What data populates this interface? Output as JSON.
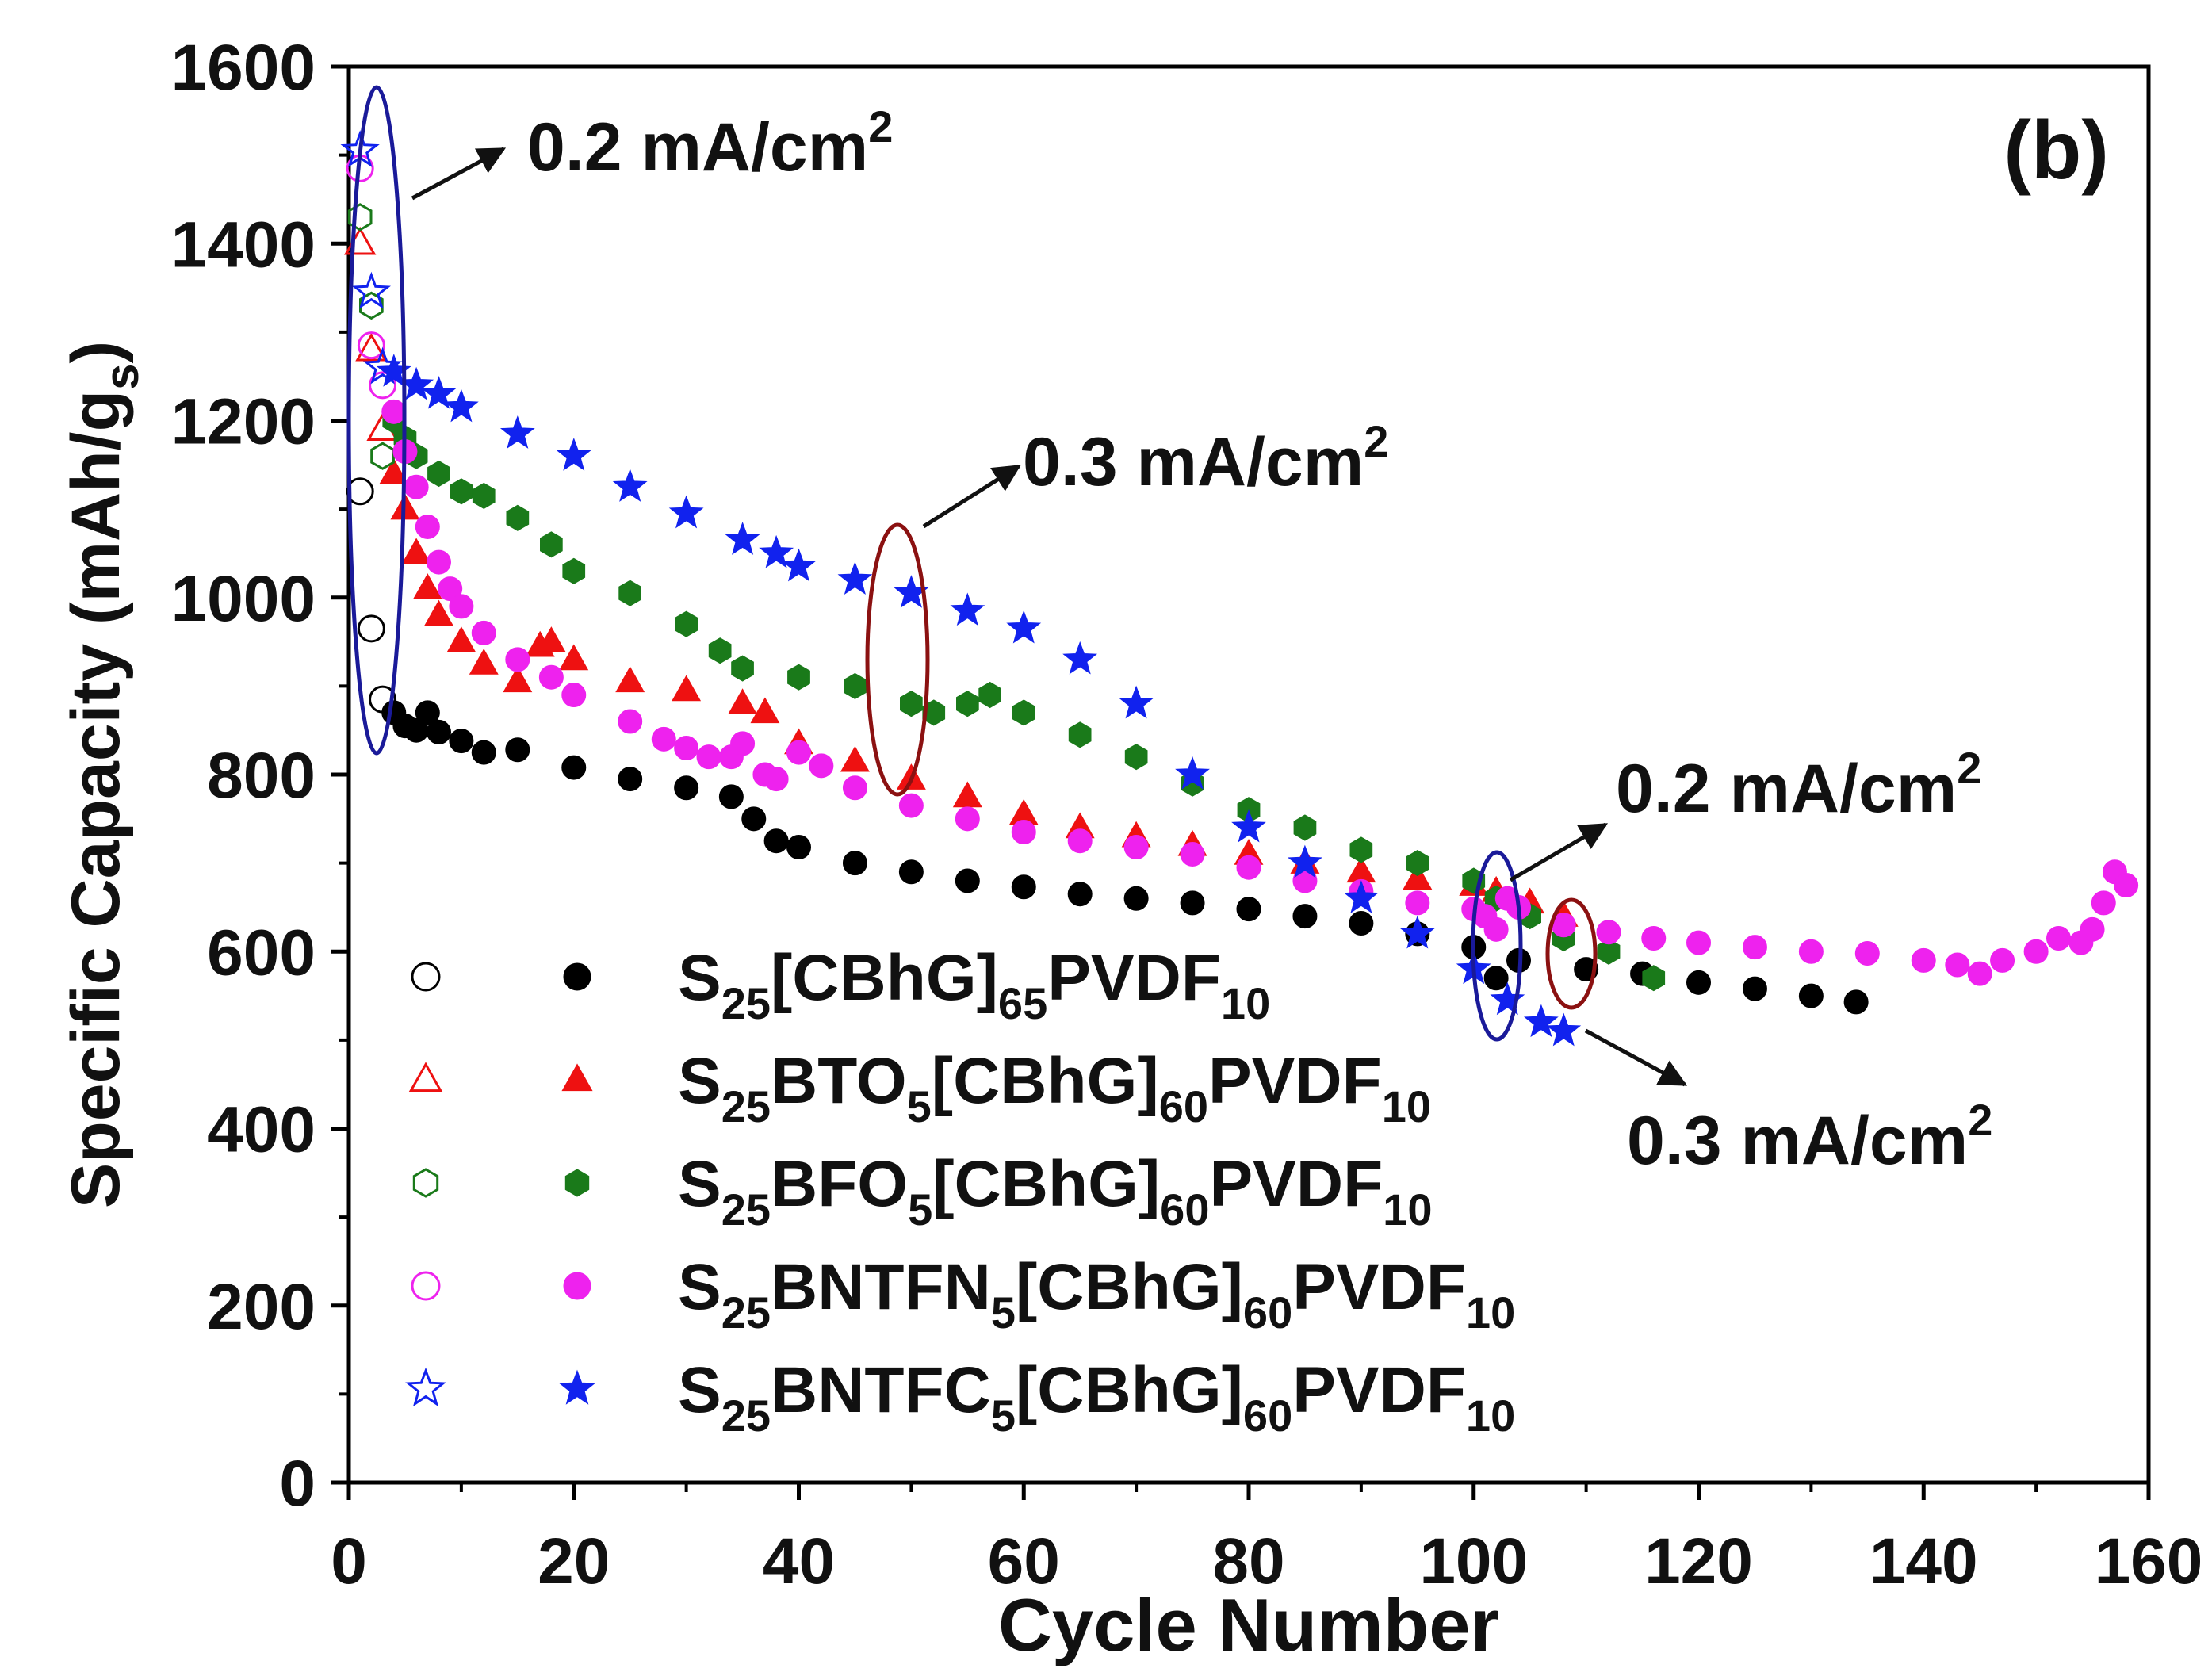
{
  "panel_label": "(b)",
  "chart_data": {
    "type": "scatter",
    "title": "",
    "xlabel": "Cycle Number",
    "ylabel_main": "Specific Capacity (mAh/g",
    "ylabel_sub": "s",
    "ylabel_close": ")",
    "xlim": [
      0,
      160
    ],
    "ylim": [
      0,
      1600
    ],
    "xticks": [
      0,
      20,
      40,
      60,
      80,
      100,
      120,
      140,
      160
    ],
    "yticks": [
      0,
      200,
      400,
      600,
      800,
      1000,
      1200,
      1400,
      1600
    ],
    "legend_position": "bottom-left",
    "series": [
      {
        "name": "S25[CBhG]65PVDF10",
        "legend_parts": [
          [
            "S",
            ""
          ],
          [
            "25",
            "sub"
          ],
          [
            "[CBhG]",
            ""
          ],
          [
            "65",
            "sub"
          ],
          [
            "PVDF",
            ""
          ],
          [
            "10",
            "sub"
          ]
        ],
        "color": "#000000",
        "marker": "circle",
        "open": [
          [
            1,
            1120
          ],
          [
            2,
            965
          ],
          [
            3,
            885
          ]
        ],
        "filled": [
          [
            4,
            870
          ],
          [
            5,
            855
          ],
          [
            6,
            850
          ],
          [
            7,
            870
          ],
          [
            8,
            848
          ],
          [
            10,
            838
          ],
          [
            12,
            825
          ],
          [
            15,
            828
          ],
          [
            20,
            808
          ],
          [
            25,
            795
          ],
          [
            30,
            785
          ],
          [
            34,
            775
          ],
          [
            36,
            750
          ],
          [
            38,
            725
          ],
          [
            40,
            718
          ],
          [
            45,
            700
          ],
          [
            50,
            690
          ],
          [
            55,
            680
          ],
          [
            60,
            673
          ],
          [
            65,
            665
          ],
          [
            70,
            660
          ],
          [
            75,
            655
          ],
          [
            80,
            648
          ],
          [
            85,
            640
          ],
          [
            90,
            632
          ],
          [
            95,
            620
          ],
          [
            100,
            605
          ],
          [
            102,
            570
          ],
          [
            104,
            590
          ],
          [
            110,
            580
          ],
          [
            115,
            575
          ],
          [
            120,
            565
          ],
          [
            125,
            558
          ],
          [
            130,
            550
          ],
          [
            134,
            543
          ]
        ]
      },
      {
        "name": "S25BTO5[CBhG]60PVDF10",
        "legend_parts": [
          [
            "S",
            ""
          ],
          [
            "25",
            "sub"
          ],
          [
            "BTO",
            ""
          ],
          [
            "5",
            "sub"
          ],
          [
            "[CBhG]",
            ""
          ],
          [
            "60",
            "sub"
          ],
          [
            "PVDF",
            ""
          ],
          [
            "10",
            "sub"
          ]
        ],
        "color": "#ee1111",
        "marker": "triangle",
        "open": [
          [
            1,
            1400
          ],
          [
            2,
            1280
          ],
          [
            3,
            1190
          ]
        ],
        "filled": [
          [
            4,
            1140
          ],
          [
            5,
            1100
          ],
          [
            6,
            1050
          ],
          [
            7,
            1010
          ],
          [
            8,
            980
          ],
          [
            10,
            950
          ],
          [
            12,
            925
          ],
          [
            15,
            905
          ],
          [
            17,
            945
          ],
          [
            18,
            950
          ],
          [
            20,
            930
          ],
          [
            25,
            905
          ],
          [
            30,
            895
          ],
          [
            35,
            880
          ],
          [
            37,
            870
          ],
          [
            40,
            835
          ],
          [
            45,
            815
          ],
          [
            50,
            795
          ],
          [
            55,
            775
          ],
          [
            60,
            755
          ],
          [
            65,
            740
          ],
          [
            70,
            730
          ],
          [
            75,
            720
          ],
          [
            80,
            710
          ],
          [
            85,
            700
          ],
          [
            90,
            690
          ],
          [
            95,
            682
          ],
          [
            100,
            675
          ],
          [
            102,
            668
          ],
          [
            105,
            655
          ],
          [
            108,
            640
          ]
        ]
      },
      {
        "name": "S25BFO5[CBhG]60PVDF10",
        "legend_parts": [
          [
            "S",
            ""
          ],
          [
            "25",
            "sub"
          ],
          [
            "BFO",
            ""
          ],
          [
            "5",
            "sub"
          ],
          [
            "[CBhG]",
            ""
          ],
          [
            "60",
            "sub"
          ],
          [
            "PVDF",
            ""
          ],
          [
            "10",
            "sub"
          ]
        ],
        "color": "#1a7a1a",
        "marker": "hexagon",
        "open": [
          [
            1,
            1430
          ],
          [
            2,
            1330
          ],
          [
            3,
            1160
          ]
        ],
        "filled": [
          [
            4,
            1200
          ],
          [
            5,
            1180
          ],
          [
            6,
            1160
          ],
          [
            8,
            1140
          ],
          [
            10,
            1120
          ],
          [
            12,
            1115
          ],
          [
            15,
            1090
          ],
          [
            18,
            1060
          ],
          [
            20,
            1030
          ],
          [
            25,
            1005
          ],
          [
            30,
            970
          ],
          [
            33,
            940
          ],
          [
            35,
            920
          ],
          [
            40,
            910
          ],
          [
            45,
            900
          ],
          [
            50,
            880
          ],
          [
            52,
            870
          ],
          [
            55,
            880
          ],
          [
            57,
            890
          ],
          [
            60,
            870
          ],
          [
            65,
            845
          ],
          [
            70,
            820
          ],
          [
            75,
            790
          ],
          [
            80,
            760
          ],
          [
            85,
            740
          ],
          [
            90,
            715
          ],
          [
            95,
            700
          ],
          [
            100,
            680
          ],
          [
            102,
            660
          ],
          [
            105,
            640
          ],
          [
            108,
            615
          ],
          [
            112,
            600
          ],
          [
            116,
            570
          ]
        ]
      },
      {
        "name": "S25BNTFN5[CBhG]60PVDF10",
        "legend_parts": [
          [
            "S",
            ""
          ],
          [
            "25",
            "sub"
          ],
          [
            "BNTFN",
            ""
          ],
          [
            "5",
            "sub"
          ],
          [
            "[CBhG]",
            ""
          ],
          [
            "60",
            "sub"
          ],
          [
            "PVDF",
            ""
          ],
          [
            "10",
            "sub"
          ]
        ],
        "color": "#ee22ee",
        "marker": "circle",
        "open": [
          [
            1,
            1485
          ],
          [
            2,
            1285
          ],
          [
            3,
            1240
          ]
        ],
        "filled": [
          [
            4,
            1210
          ],
          [
            5,
            1165
          ],
          [
            6,
            1125
          ],
          [
            7,
            1080
          ],
          [
            8,
            1040
          ],
          [
            9,
            1010
          ],
          [
            10,
            990
          ],
          [
            12,
            960
          ],
          [
            15,
            930
          ],
          [
            18,
            910
          ],
          [
            20,
            890
          ],
          [
            25,
            860
          ],
          [
            28,
            840
          ],
          [
            30,
            830
          ],
          [
            32,
            820
          ],
          [
            34,
            820
          ],
          [
            35,
            835
          ],
          [
            37,
            800
          ],
          [
            38,
            795
          ],
          [
            40,
            825
          ],
          [
            42,
            810
          ],
          [
            45,
            785
          ],
          [
            50,
            765
          ],
          [
            55,
            750
          ],
          [
            60,
            735
          ],
          [
            65,
            725
          ],
          [
            70,
            718
          ],
          [
            75,
            710
          ],
          [
            80,
            695
          ],
          [
            85,
            680
          ],
          [
            90,
            668
          ],
          [
            95,
            655
          ],
          [
            100,
            648
          ],
          [
            101,
            640
          ],
          [
            102,
            625
          ],
          [
            103,
            660
          ],
          [
            104,
            650
          ],
          [
            108,
            630
          ],
          [
            112,
            622
          ],
          [
            116,
            615
          ],
          [
            120,
            610
          ],
          [
            125,
            605
          ],
          [
            130,
            600
          ],
          [
            135,
            598
          ],
          [
            140,
            590
          ],
          [
            143,
            585
          ],
          [
            145,
            575
          ],
          [
            147,
            590
          ],
          [
            150,
            600
          ],
          [
            152,
            615
          ],
          [
            154,
            610
          ],
          [
            155,
            625
          ],
          [
            156,
            655
          ],
          [
            157,
            690
          ],
          [
            158,
            675
          ]
        ]
      },
      {
        "name": "S25BNTFC5[CBhG]60PVDF10",
        "legend_parts": [
          [
            "S",
            ""
          ],
          [
            "25",
            "sub"
          ],
          [
            "BNTFC",
            ""
          ],
          [
            "5",
            "sub"
          ],
          [
            "[CBhG]",
            ""
          ],
          [
            "60",
            "sub"
          ],
          [
            "PVDF",
            ""
          ],
          [
            "10",
            "sub"
          ]
        ],
        "color": "#1122ee",
        "marker": "star",
        "open": [
          [
            1,
            1505
          ],
          [
            2,
            1345
          ],
          [
            3,
            1260
          ]
        ],
        "filled": [
          [
            4,
            1255
          ],
          [
            6,
            1240
          ],
          [
            8,
            1230
          ],
          [
            10,
            1215
          ],
          [
            15,
            1185
          ],
          [
            20,
            1160
          ],
          [
            25,
            1125
          ],
          [
            30,
            1095
          ],
          [
            35,
            1065
          ],
          [
            38,
            1050
          ],
          [
            40,
            1035
          ],
          [
            45,
            1020
          ],
          [
            50,
            1005
          ],
          [
            55,
            985
          ],
          [
            60,
            965
          ],
          [
            65,
            930
          ],
          [
            70,
            880
          ],
          [
            75,
            800
          ],
          [
            80,
            740
          ],
          [
            85,
            700
          ],
          [
            90,
            660
          ],
          [
            95,
            620
          ],
          [
            100,
            580
          ],
          [
            103,
            545
          ],
          [
            106,
            520
          ],
          [
            108,
            510
          ]
        ]
      }
    ],
    "annotations": [
      {
        "label": "0.2 mA/cm",
        "sup": "2"
      },
      {
        "label": "0.3 mA/cm",
        "sup": "2"
      },
      {
        "label": "0.2 mA/cm",
        "sup": "2"
      },
      {
        "label": "0.3 mA/cm",
        "sup": "2"
      }
    ]
  }
}
